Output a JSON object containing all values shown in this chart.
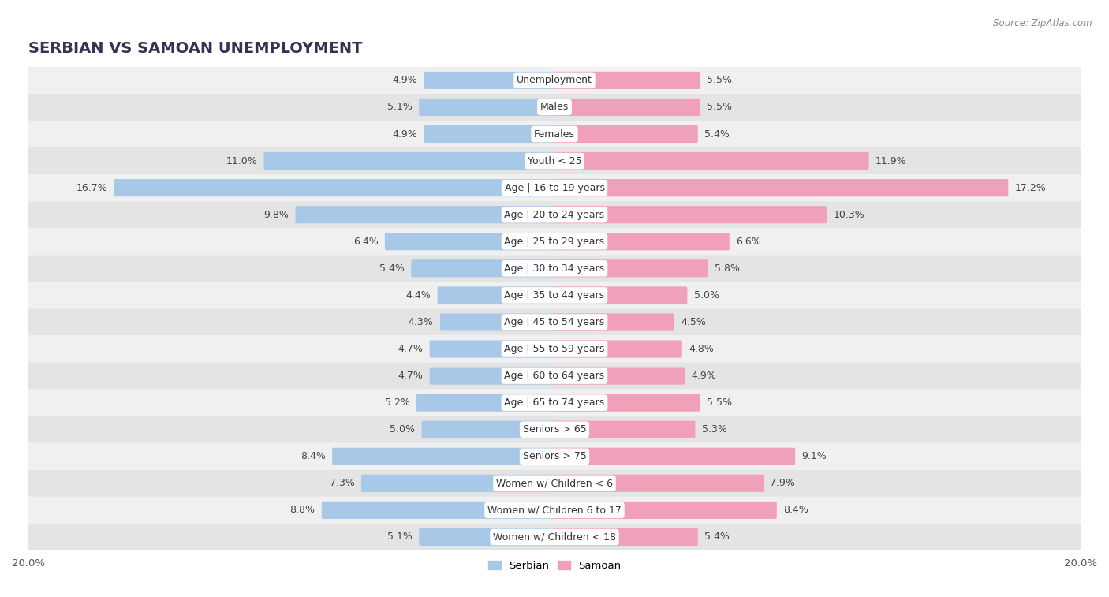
{
  "title": "SERBIAN VS SAMOAN UNEMPLOYMENT",
  "source": "Source: ZipAtlas.com",
  "categories": [
    "Unemployment",
    "Males",
    "Females",
    "Youth < 25",
    "Age | 16 to 19 years",
    "Age | 20 to 24 years",
    "Age | 25 to 29 years",
    "Age | 30 to 34 years",
    "Age | 35 to 44 years",
    "Age | 45 to 54 years",
    "Age | 55 to 59 years",
    "Age | 60 to 64 years",
    "Age | 65 to 74 years",
    "Seniors > 65",
    "Seniors > 75",
    "Women w/ Children < 6",
    "Women w/ Children 6 to 17",
    "Women w/ Children < 18"
  ],
  "serbian": [
    4.9,
    5.1,
    4.9,
    11.0,
    16.7,
    9.8,
    6.4,
    5.4,
    4.4,
    4.3,
    4.7,
    4.7,
    5.2,
    5.0,
    8.4,
    7.3,
    8.8,
    5.1
  ],
  "samoan": [
    5.5,
    5.5,
    5.4,
    11.9,
    17.2,
    10.3,
    6.6,
    5.8,
    5.0,
    4.5,
    4.8,
    4.9,
    5.5,
    5.3,
    9.1,
    7.9,
    8.4,
    5.4
  ],
  "serbian_color": "#a8c8e8",
  "samoan_color": "#f0a0b8",
  "row_odd_color": "#f0f0f0",
  "row_even_color": "#e4e4e4",
  "axis_max": 20.0,
  "bar_height": 0.55,
  "title_fontsize": 14,
  "label_fontsize": 9,
  "cat_fontsize": 9
}
